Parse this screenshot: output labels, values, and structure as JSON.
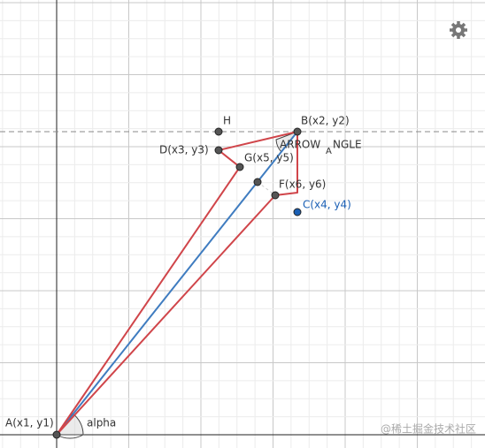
{
  "points": {
    "A": "A(x1, y1)",
    "B": "B(x2, y2)",
    "C": "C(x4, y4)",
    "D": "D(x3, y3)",
    "G": "G(x5, y5)",
    "F": "F(x6, y6)",
    "H": "H"
  },
  "angles": {
    "alpha": "alpha",
    "arrow_angle": {
      "main": "ARROW",
      "subscript": "A",
      "rest": "NGLE"
    }
  },
  "watermark": "@稀土掘金技术社区"
}
